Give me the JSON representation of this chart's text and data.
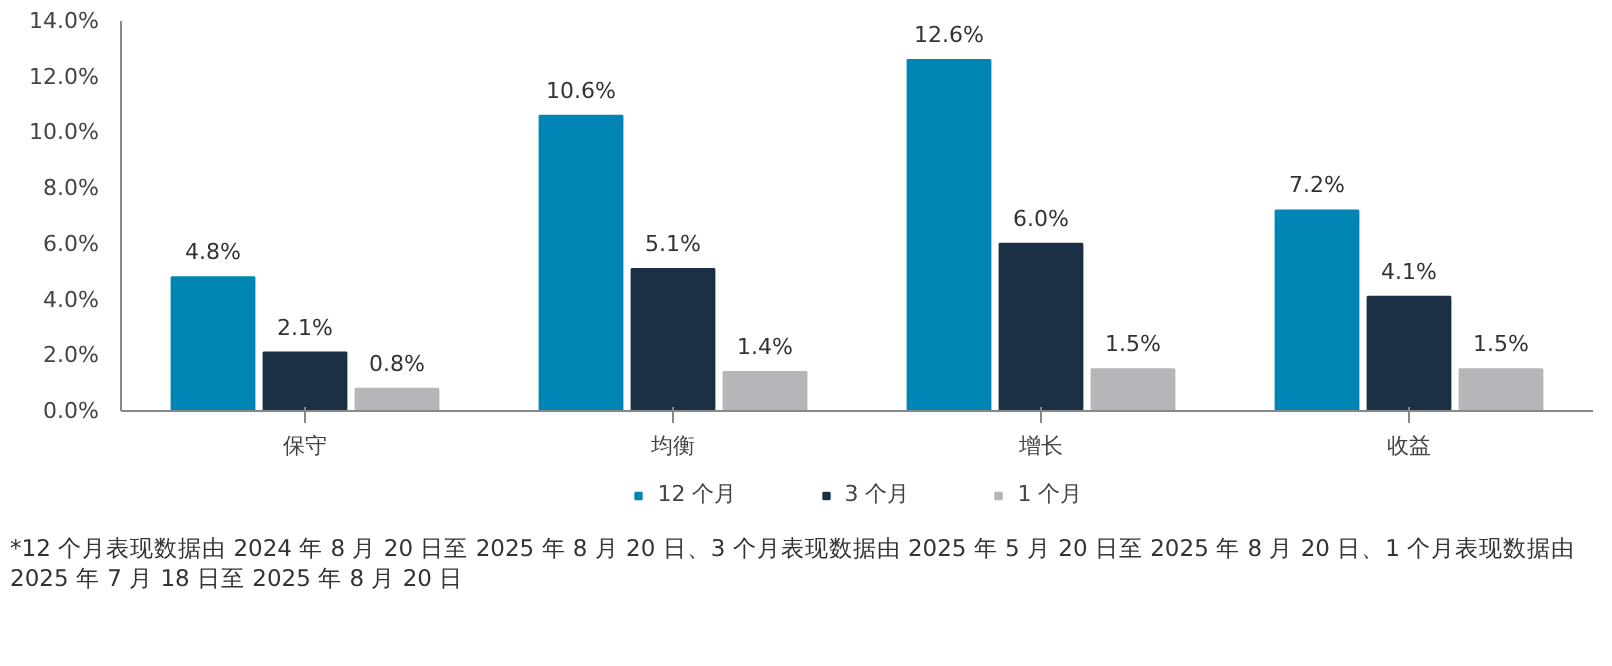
{
  "chart_data": {
    "type": "bar",
    "categories": [
      "保守",
      "均衡",
      "增长",
      "收益"
    ],
    "series": [
      {
        "name": "12 个月",
        "color": "#0085b5",
        "values": [
          4.8,
          10.6,
          12.6,
          7.2
        ],
        "value_labels": [
          "4.8%",
          "10.6%",
          "12.6%",
          "7.2%"
        ]
      },
      {
        "name": "3 个月",
        "color": "#1b2f45",
        "values": [
          2.1,
          5.1,
          6.0,
          4.1
        ],
        "value_labels": [
          "2.1%",
          "5.1%",
          "6.0%",
          "4.1%"
        ]
      },
      {
        "name": "1 个月",
        "color": "#b4b6b9",
        "values": [
          0.8,
          1.4,
          1.5,
          1.5
        ],
        "value_labels": [
          "0.8%",
          "1.4%",
          "1.5%",
          "1.5%"
        ]
      }
    ],
    "ylim": [
      0,
      14
    ],
    "yticks": [
      {
        "value": 0,
        "label": "0.0%"
      },
      {
        "value": 2,
        "label": "2.0%"
      },
      {
        "value": 4,
        "label": "4.0%"
      },
      {
        "value": 6,
        "label": "6.0%"
      },
      {
        "value": 8,
        "label": "8.0%"
      },
      {
        "value": 10,
        "label": "10.0%"
      },
      {
        "value": 12,
        "label": "12.0%"
      },
      {
        "value": 14,
        "label": "14.0%"
      }
    ],
    "legend": "bottom",
    "annotations": [
      "*12 个月表现数据由 2024 年 8 月 20 日至 2025 年 8 月 20 日、3 个月表现数据由 2025 年 5 月 20 日至 2025 年 8 月 20 日、1 个月表现数据由 2025 年 7 月 18 日至 2025 年 8 月 20 日"
    ]
  }
}
